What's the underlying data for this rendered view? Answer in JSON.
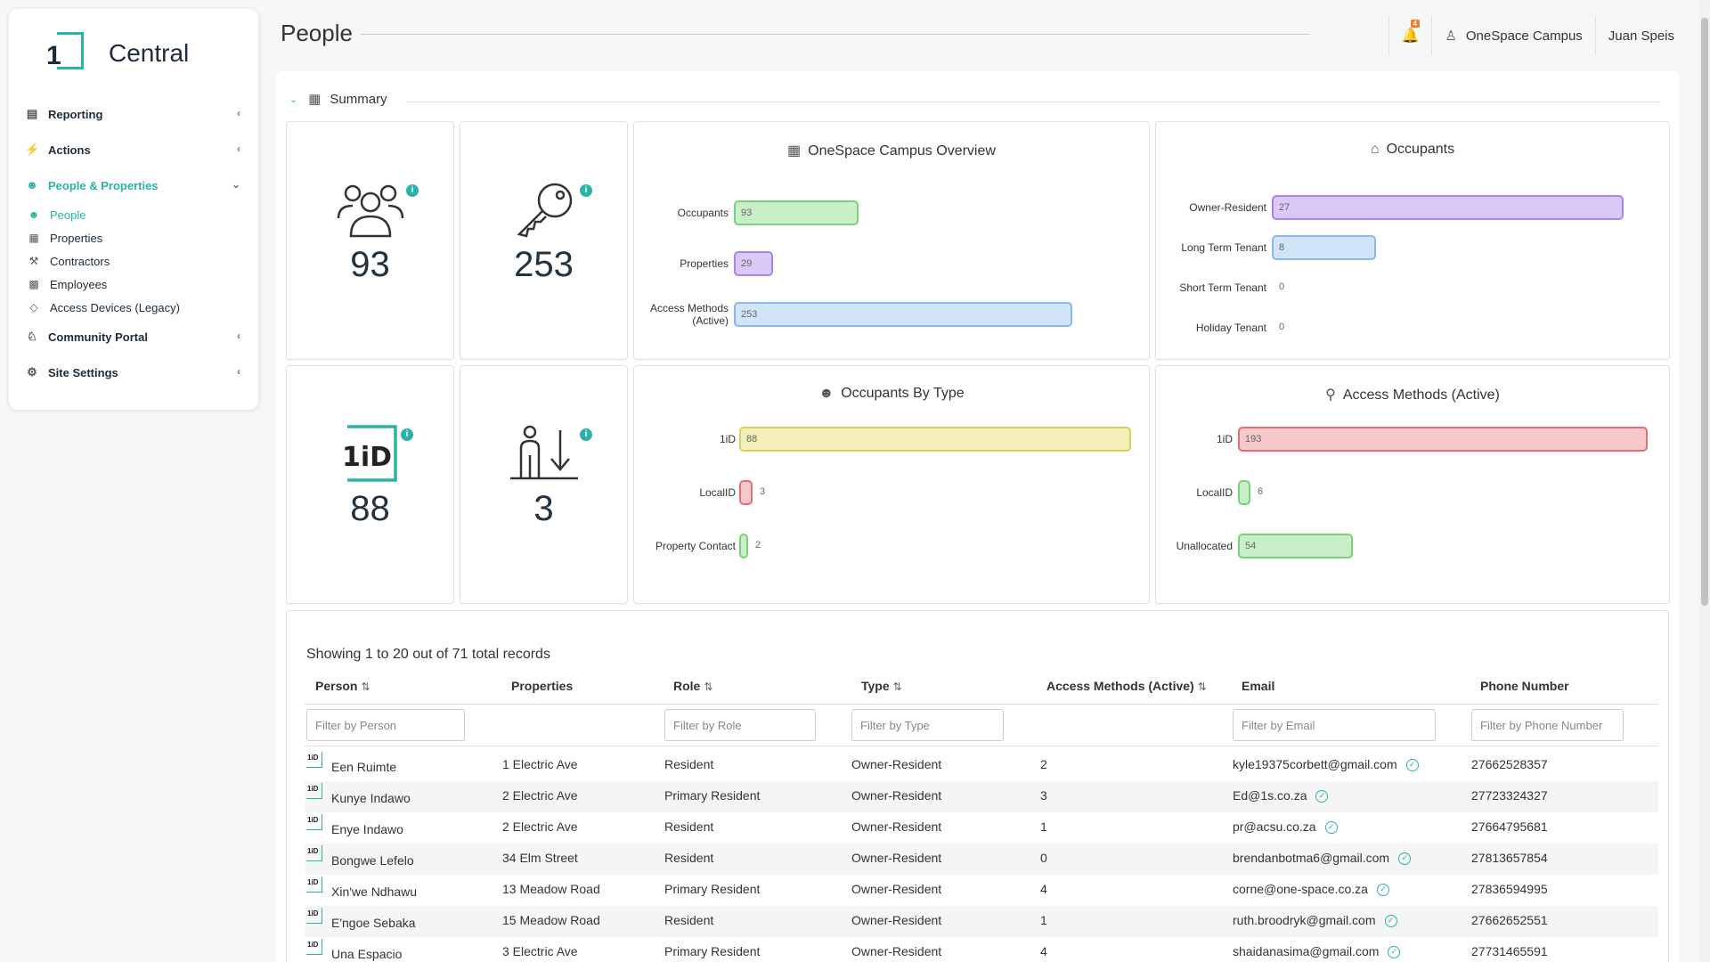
{
  "app": {
    "logo_one": "1",
    "logo_name": "Central"
  },
  "sidebar": {
    "items": [
      {
        "label": "Reporting",
        "icon": "chart-icon"
      },
      {
        "label": "Actions",
        "icon": "bolt-icon"
      },
      {
        "label": "People & Properties",
        "icon": "people-icon"
      },
      {
        "label": "Community Portal",
        "icon": "community-icon"
      },
      {
        "label": "Site Settings",
        "icon": "gear-icon"
      }
    ],
    "subitems": [
      {
        "label": "People"
      },
      {
        "label": "Properties"
      },
      {
        "label": "Contractors"
      },
      {
        "label": "Employees"
      },
      {
        "label": "Access Devices (Legacy)"
      }
    ]
  },
  "header": {
    "title": "People",
    "notifications": "4",
    "campus": "OneSpace Campus",
    "user": "Juan Speis"
  },
  "summary": {
    "title": "Summary"
  },
  "stats": [
    {
      "value": "93",
      "icon": "people-group-icon"
    },
    {
      "value": "253",
      "icon": "key-icon"
    },
    {
      "value": "88",
      "icon": "1id-logo-icon"
    },
    {
      "value": "3",
      "icon": "person-arrow-down-icon"
    }
  ],
  "charts": [
    {
      "title": "OneSpace Campus Overview",
      "icon": "map-icon",
      "bars": [
        {
          "label": "Occupants",
          "value": 93
        },
        {
          "label": "Properties",
          "value": 29
        },
        {
          "label": "Access Methods (Active)",
          "value": 253
        }
      ]
    },
    {
      "title": "Occupants",
      "icon": "house-person-icon",
      "bars": [
        {
          "label": "Owner-Resident",
          "value": 27
        },
        {
          "label": "Long Term Tenant",
          "value": 8
        },
        {
          "label": "Short Term Tenant",
          "value": 0
        },
        {
          "label": "Holiday Tenant",
          "value": 0
        }
      ]
    },
    {
      "title": "Occupants By Type",
      "icon": "people-group-icon",
      "bars": [
        {
          "label": "1iD",
          "value": 88
        },
        {
          "label": "LocalID",
          "value": 3
        },
        {
          "label": "Property Contact",
          "value": 2
        }
      ]
    },
    {
      "title": "Access Methods (Active)",
      "icon": "key-icon",
      "bars": [
        {
          "label": "1iD",
          "value": 193
        },
        {
          "label": "LocalID",
          "value": 6
        },
        {
          "label": "Unallocated",
          "value": 54
        }
      ]
    }
  ],
  "colors": {
    "accent": "#2ab3a6",
    "green": "#c8efc8",
    "purple": "#dcc8f8",
    "blue": "#d0e4fa",
    "yellow": "#f2efb8",
    "red": "#f6c8ca"
  },
  "table": {
    "records_text": "Showing 1 to 20 out of 71 total records",
    "columns": [
      "Person",
      "Properties",
      "Role",
      "Type",
      "Access Methods (Active)",
      "Email",
      "Phone Number"
    ],
    "filters": {
      "person": "Filter by Person",
      "role": "Filter by Role",
      "type": "Filter by Type",
      "email": "Filter by Email",
      "phone": "Filter by Phone Number"
    },
    "rows": [
      {
        "person": "Een Ruimte",
        "property": "1 Electric Ave",
        "role": "Resident",
        "type": "Owner-Resident",
        "access": "2",
        "email": "kyle19375corbett@gmail.com",
        "phone": "27662528357"
      },
      {
        "person": "Kunye Indawo",
        "property": "2 Electric Ave",
        "role": "Primary Resident",
        "type": "Owner-Resident",
        "access": "3",
        "email": "Ed@1s.co.za",
        "phone": "27723324327"
      },
      {
        "person": "Enye Indawo",
        "property": "2 Electric Ave",
        "role": "Resident",
        "type": "Owner-Resident",
        "access": "1",
        "email": "pr@acsu.co.za",
        "phone": "27664795681"
      },
      {
        "person": "Bongwe Lefelo",
        "property": "34 Elm Street",
        "role": "Resident",
        "type": "Owner-Resident",
        "access": "0",
        "email": "brendanbotma6@gmail.com",
        "phone": "27813657854"
      },
      {
        "person": "Xin'we Ndhawu",
        "property": "13 Meadow Road",
        "role": "Primary Resident",
        "type": "Owner-Resident",
        "access": "4",
        "email": "corne@one-space.co.za",
        "phone": "27836594995"
      },
      {
        "person": "E'ngoe Sebaka",
        "property": "15 Meadow Road",
        "role": "Resident",
        "type": "Owner-Resident",
        "access": "1",
        "email": "ruth.broodryk@gmail.com",
        "phone": "27662652551"
      },
      {
        "person": "Una Espacio",
        "property": "3 Electric Ave",
        "role": "Primary Resident",
        "type": "Owner-Resident",
        "access": "4",
        "email": "shaidanasima@gmail.com",
        "phone": "27731465591"
      }
    ]
  }
}
